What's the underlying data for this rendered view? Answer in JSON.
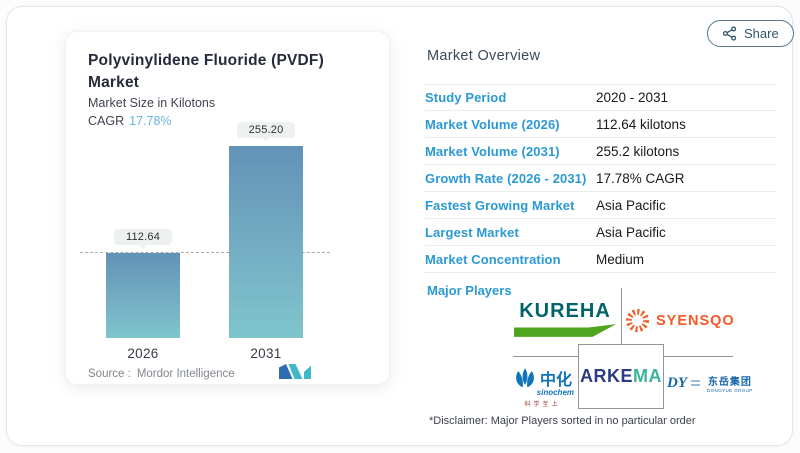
{
  "header": {
    "share_label": "Share"
  },
  "chart_card": {
    "title_line1": "Polyvinylidene Fluoride (PVDF)",
    "title_line2": "Market",
    "subtitle": "Market Size in Kilotons",
    "cagr_label": "CAGR",
    "cagr_value": "17.78%",
    "source_label": "Source :",
    "source_name": "Mordor Intelligence"
  },
  "chart_data": {
    "type": "bar",
    "title": "Polyvinylidene Fluoride (PVDF) Market",
    "ylabel": "Market Size in Kilotons",
    "categories": [
      "2026",
      "2031"
    ],
    "values": [
      112.64,
      255.2
    ],
    "value_labels": [
      "112.64",
      "255.20"
    ],
    "ylim": [
      0,
      280
    ],
    "grid": false,
    "legend": "none",
    "reference_line_value": 112.64,
    "cagr_pct": 17.78,
    "bar_color_top": "#6292b7",
    "bar_color_bottom": "#7fc5cc"
  },
  "overview": {
    "heading": "Market Overview",
    "rows": [
      {
        "label": "Study Period",
        "value": "2020 - 2031"
      },
      {
        "label": "Market Volume (2026)",
        "value": "112.64 kilotons"
      },
      {
        "label": "Market Volume (2031)",
        "value": "255.2 kilotons"
      },
      {
        "label": "Growth Rate (2026 - 2031)",
        "value": "17.78% CAGR"
      },
      {
        "label": "Fastest Growing Market",
        "value": "Asia Pacific"
      },
      {
        "label": "Largest Market",
        "value": "Asia Pacific"
      },
      {
        "label": "Market Concentration",
        "value": "Medium"
      }
    ],
    "major_players_label": "Major Players",
    "players": {
      "kureha": {
        "name": "KUREHA"
      },
      "syensqo": {
        "name": "SYENSQO"
      },
      "sinochem": {
        "zh": "中化",
        "en": "sinochem",
        "slogan": "科学至上"
      },
      "arkema": {
        "left": "ARKE",
        "right": "MA"
      },
      "dongyue": {
        "abbr": "DY",
        "zh": "东岳集团",
        "en": "DONGYUE GROUP"
      }
    },
    "disclaimer": "*Disclaimer: Major Players sorted in no particular order"
  },
  "colors": {
    "accent_label_blue": "#2b99d3",
    "cagr_blue": "#67b6da",
    "share_slate": "#33566b",
    "kureha_teal": "#00646a",
    "kureha_green": "#4fa51d",
    "syensqo_orange": "#f15a24",
    "sinochem_blue": "#1173b9",
    "arkema_navy": "#2d3a84",
    "arkema_teal": "#3cb49b",
    "dongyue_blue": "#1565a8",
    "mordor_blue": "#2f6db2",
    "mordor_teal": "#41b8c8"
  }
}
